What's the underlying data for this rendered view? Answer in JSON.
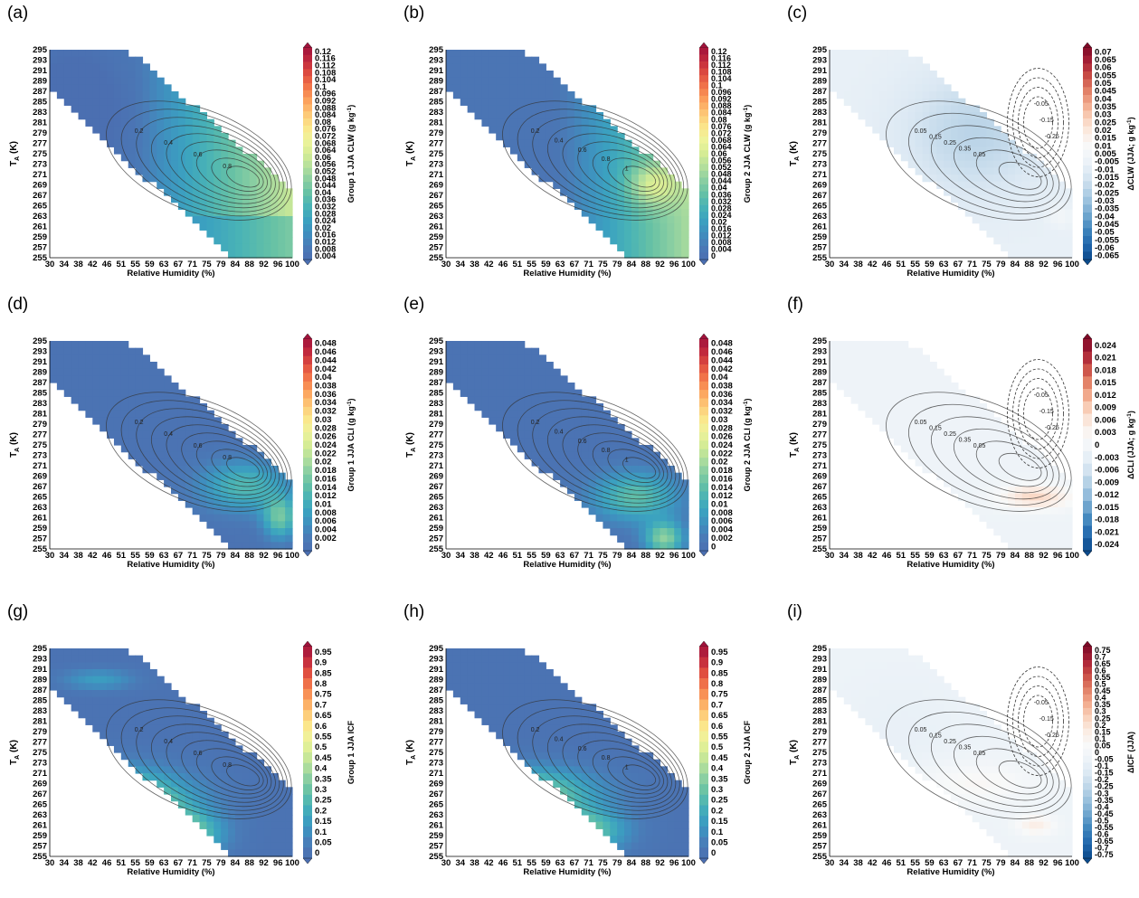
{
  "figure": {
    "xlabel": "Relative Humidity (%)",
    "ylabel_main": "T",
    "ylabel_sub": "A",
    "ylabel_unit": " (K)"
  },
  "colors": {
    "seq": [
      "#4b6fb1",
      "#4a7bb7",
      "#3f8fbf",
      "#3ba2c0",
      "#49b3b6",
      "#66c1a5",
      "#8bcfa2",
      "#b3df9c",
      "#d5ec95",
      "#eef39b",
      "#fbe68b",
      "#fdc877",
      "#fca25d",
      "#f3784b",
      "#e04f40",
      "#c22a3d",
      "#a1133c"
    ],
    "div": [
      "#0c4b8c",
      "#2166ac",
      "#3b82bb",
      "#6aa2cc",
      "#96bedc",
      "#bcd5e8",
      "#dbe8f3",
      "#edf3f8",
      "#f8f9f9",
      "#fbece3",
      "#f9d2bc",
      "#f2aa8d",
      "#e17f66",
      "#c94c45",
      "#a92136",
      "#7f0a27"
    ]
  },
  "chart_data": [
    {
      "id": "a",
      "panel_label": "(a)",
      "type": "heatmap",
      "colormap": "seq",
      "field": "clw1",
      "x_ticks": [
        "30",
        "34",
        "38",
        "42",
        "46",
        "51",
        "55",
        "59",
        "63",
        "67",
        "71",
        "75",
        "79",
        "84",
        "88",
        "92",
        "96",
        "100"
      ],
      "y_ticks": [
        "255",
        "257",
        "259",
        "261",
        "263",
        "265",
        "267",
        "269",
        "271",
        "273",
        "275",
        "277",
        "279",
        "281",
        "283",
        "285",
        "287",
        "289",
        "291",
        "293",
        "295"
      ],
      "cbar_label": [
        "Group 1 JJA CLW (g kg",
        "-1",
        ")"
      ],
      "cbar_ticks": [
        "0.004",
        "0.008",
        "0.012",
        "0.016",
        "0.02",
        "0.024",
        "0.028",
        "0.032",
        "0.036",
        "0.04",
        "0.044",
        "0.048",
        "0.052",
        "0.056",
        "0.06",
        "0.064",
        "0.068",
        "0.072",
        "0.076",
        "0.08",
        "0.084",
        "0.088",
        "0.092",
        "0.096",
        "0.1",
        "0.104",
        "0.108",
        "0.112",
        "0.116",
        "0.12"
      ],
      "contours": "freq",
      "contour_labels": [
        "0.2",
        "0.4",
        "0.6",
        "0.8"
      ]
    },
    {
      "id": "b",
      "panel_label": "(b)",
      "type": "heatmap",
      "colormap": "seq",
      "field": "clw2",
      "x_ticks": [
        "30",
        "34",
        "38",
        "42",
        "46",
        "51",
        "55",
        "59",
        "63",
        "67",
        "71",
        "75",
        "79",
        "84",
        "88",
        "92",
        "96",
        "100"
      ],
      "y_ticks": [
        "255",
        "257",
        "259",
        "261",
        "263",
        "265",
        "267",
        "269",
        "271",
        "273",
        "275",
        "277",
        "279",
        "281",
        "283",
        "285",
        "287",
        "289",
        "291",
        "293",
        "295"
      ],
      "cbar_label": [
        "Group 2 JJA CLW (g kg",
        "-1",
        ")"
      ],
      "cbar_ticks": [
        "0",
        "0.004",
        "0.008",
        "0.012",
        "0.016",
        "0.02",
        "0.024",
        "0.028",
        "0.032",
        "0.036",
        "0.04",
        "0.044",
        "0.048",
        "0.052",
        "0.056",
        "0.06",
        "0.064",
        "0.068",
        "0.072",
        "0.076",
        "0.08",
        "0.084",
        "0.088",
        "0.092",
        "0.096",
        "0.1",
        "0.104",
        "0.108",
        "0.112",
        "0.116",
        "0.12"
      ],
      "contours": "freq",
      "contour_labels": [
        "0.2",
        "0.4",
        "0.6",
        "0.8",
        "1"
      ]
    },
    {
      "id": "c",
      "panel_label": "(c)",
      "type": "heatmap",
      "colormap": "div",
      "field": "dclw",
      "x_ticks": [
        "30",
        "34",
        "38",
        "42",
        "46",
        "51",
        "55",
        "59",
        "63",
        "67",
        "71",
        "75",
        "79",
        "84",
        "88",
        "92",
        "96",
        "100"
      ],
      "y_ticks": [
        "255",
        "257",
        "259",
        "261",
        "263",
        "265",
        "267",
        "269",
        "271",
        "273",
        "275",
        "277",
        "279",
        "281",
        "283",
        "285",
        "287",
        "289",
        "291",
        "293",
        "295"
      ],
      "cbar_label": [
        "ΔCLW (JJA; g kg",
        "-1",
        ")"
      ],
      "cbar_ticks": [
        "-0.065",
        "-0.06",
        "-0.055",
        "-0.05",
        "-0.045",
        "-0.04",
        "-0.035",
        "-0.03",
        "-0.025",
        "-0.02",
        "-0.015",
        "-0.01",
        "-0.005",
        "0.005",
        "0.01",
        "0.015",
        "0.02",
        "0.025",
        "0.03",
        "0.035",
        "0.04",
        "0.045",
        "0.05",
        "0.055",
        "0.06",
        "0.065",
        "0.07"
      ],
      "contours": "diff",
      "contour_labels": [
        "0.05",
        "0.15",
        "0.25",
        "0.35",
        "0.05",
        "-0.05",
        "-0.15",
        "-0.25"
      ]
    },
    {
      "id": "d",
      "panel_label": "(d)",
      "type": "heatmap",
      "colormap": "seq",
      "field": "cli1",
      "x_ticks": [
        "30",
        "34",
        "38",
        "42",
        "46",
        "51",
        "55",
        "59",
        "63",
        "67",
        "71",
        "75",
        "79",
        "84",
        "88",
        "92",
        "96",
        "100"
      ],
      "y_ticks": [
        "255",
        "257",
        "259",
        "261",
        "263",
        "265",
        "267",
        "269",
        "271",
        "273",
        "275",
        "277",
        "279",
        "281",
        "283",
        "285",
        "287",
        "289",
        "291",
        "293",
        "295"
      ],
      "cbar_label": [
        "Group 1 JJA CLI (g kg",
        "-1",
        ")"
      ],
      "cbar_ticks": [
        "0",
        "0.002",
        "0.004",
        "0.006",
        "0.008",
        "0.01",
        "0.012",
        "0.014",
        "0.016",
        "0.018",
        "0.02",
        "0.022",
        "0.024",
        "0.026",
        "0.028",
        "0.03",
        "0.032",
        "0.034",
        "0.036",
        "0.038",
        "0.04",
        "0.042",
        "0.044",
        "0.046",
        "0.048"
      ],
      "contours": "freq",
      "contour_labels": [
        "0.2",
        "0.4",
        "0.6",
        "0.8"
      ]
    },
    {
      "id": "e",
      "panel_label": "(e)",
      "type": "heatmap",
      "colormap": "seq",
      "field": "cli2",
      "x_ticks": [
        "30",
        "34",
        "38",
        "42",
        "46",
        "51",
        "55",
        "59",
        "63",
        "67",
        "71",
        "75",
        "79",
        "84",
        "88",
        "92",
        "96",
        "100"
      ],
      "y_ticks": [
        "255",
        "257",
        "259",
        "261",
        "263",
        "265",
        "267",
        "269",
        "271",
        "273",
        "275",
        "277",
        "279",
        "281",
        "283",
        "285",
        "287",
        "289",
        "291",
        "293",
        "295"
      ],
      "cbar_label": [
        "Group 2 JJA CLI (g kg",
        "-1",
        ")"
      ],
      "cbar_ticks": [
        "0",
        "0.002",
        "0.004",
        "0.006",
        "0.008",
        "0.01",
        "0.012",
        "0.014",
        "0.016",
        "0.018",
        "0.02",
        "0.022",
        "0.024",
        "0.026",
        "0.028",
        "0.03",
        "0.032",
        "0.034",
        "0.036",
        "0.038",
        "0.04",
        "0.042",
        "0.044",
        "0.046",
        "0.048"
      ],
      "contours": "freq",
      "contour_labels": [
        "0.2",
        "0.4",
        "0.6",
        "0.8",
        "1"
      ]
    },
    {
      "id": "f",
      "panel_label": "(f)",
      "type": "heatmap",
      "colormap": "div",
      "field": "dcli",
      "x_ticks": [
        "30",
        "34",
        "38",
        "42",
        "46",
        "51",
        "55",
        "59",
        "63",
        "67",
        "71",
        "75",
        "79",
        "84",
        "88",
        "92",
        "96",
        "100"
      ],
      "y_ticks": [
        "255",
        "257",
        "259",
        "261",
        "263",
        "265",
        "267",
        "269",
        "271",
        "273",
        "275",
        "277",
        "279",
        "281",
        "283",
        "285",
        "287",
        "289",
        "291",
        "293",
        "295"
      ],
      "cbar_label": [
        "ΔCLI (JJA; g kg",
        "-1",
        ")"
      ],
      "cbar_ticks": [
        "-0.024",
        "-0.021",
        "-0.018",
        "-0.015",
        "-0.012",
        "-0.009",
        "-0.006",
        "-0.003",
        "0",
        "0.003",
        "0.006",
        "0.009",
        "0.012",
        "0.015",
        "0.018",
        "0.021",
        "0.024"
      ],
      "contours": "diff",
      "contour_labels": [
        "0.05",
        "0.15",
        "0.25",
        "0.35",
        "0.05",
        "-0.05",
        "-0.15",
        "-0.25"
      ]
    },
    {
      "id": "g",
      "panel_label": "(g)",
      "type": "heatmap",
      "colormap": "seq",
      "field": "icf1",
      "x_ticks": [
        "30",
        "34",
        "38",
        "42",
        "46",
        "51",
        "55",
        "59",
        "63",
        "67",
        "71",
        "75",
        "79",
        "84",
        "88",
        "92",
        "96",
        "100"
      ],
      "y_ticks": [
        "255",
        "257",
        "259",
        "261",
        "263",
        "265",
        "267",
        "269",
        "271",
        "273",
        "275",
        "277",
        "279",
        "281",
        "283",
        "285",
        "287",
        "289",
        "291",
        "293",
        "295"
      ],
      "cbar_label": [
        "Group 1 JJA ICF",
        "",
        ""
      ],
      "cbar_ticks": [
        "0",
        "0.05",
        "0.1",
        "0.15",
        "0.2",
        "0.25",
        "0.3",
        "0.35",
        "0.4",
        "0.45",
        "0.5",
        "0.55",
        "0.6",
        "0.65",
        "0.7",
        "0.75",
        "0.8",
        "0.85",
        "0.9",
        "0.95"
      ],
      "contours": "freq",
      "contour_labels": [
        "0.2",
        "0.4",
        "0.6",
        "0.8"
      ]
    },
    {
      "id": "h",
      "panel_label": "(h)",
      "type": "heatmap",
      "colormap": "seq",
      "field": "icf2",
      "x_ticks": [
        "30",
        "34",
        "38",
        "42",
        "46",
        "51",
        "55",
        "59",
        "63",
        "67",
        "71",
        "75",
        "79",
        "84",
        "88",
        "92",
        "96",
        "100"
      ],
      "y_ticks": [
        "255",
        "257",
        "259",
        "261",
        "263",
        "265",
        "267",
        "269",
        "271",
        "273",
        "275",
        "277",
        "279",
        "281",
        "283",
        "285",
        "287",
        "289",
        "291",
        "293",
        "295"
      ],
      "cbar_label": [
        "Group 2 JJA ICF",
        "",
        ""
      ],
      "cbar_ticks": [
        "0",
        "0.05",
        "0.1",
        "0.15",
        "0.2",
        "0.25",
        "0.3",
        "0.35",
        "0.4",
        "0.45",
        "0.5",
        "0.55",
        "0.6",
        "0.65",
        "0.7",
        "0.75",
        "0.8",
        "0.85",
        "0.9",
        "0.95"
      ],
      "contours": "freq",
      "contour_labels": [
        "0.2",
        "0.4",
        "0.6",
        "0.8",
        "1"
      ]
    },
    {
      "id": "i",
      "panel_label": "(i)",
      "type": "heatmap",
      "colormap": "div",
      "field": "dicf",
      "x_ticks": [
        "30",
        "34",
        "38",
        "42",
        "46",
        "51",
        "55",
        "59",
        "63",
        "67",
        "71",
        "75",
        "79",
        "84",
        "88",
        "92",
        "96",
        "100"
      ],
      "y_ticks": [
        "255",
        "257",
        "259",
        "261",
        "263",
        "265",
        "267",
        "269",
        "271",
        "273",
        "275",
        "277",
        "279",
        "281",
        "283",
        "285",
        "287",
        "289",
        "291",
        "293",
        "295"
      ],
      "cbar_label": [
        "ΔICF (JJA)",
        "",
        ""
      ],
      "cbar_ticks": [
        "-0.75",
        "-0.7",
        "-0.65",
        "-0.6",
        "-0.55",
        "-0.5",
        "-0.45",
        "-0.4",
        "-0.35",
        "-0.3",
        "-0.25",
        "-0.2",
        "-0.15",
        "-0.1",
        "-0.05",
        "0",
        "0.05",
        "0.1",
        "0.15",
        "0.2",
        "0.25",
        "0.3",
        "0.35",
        "0.4",
        "0.45",
        "0.5",
        "0.55",
        "0.6",
        "0.65",
        "0.7",
        "0.75"
      ],
      "contours": "diff",
      "contour_labels": [
        "0.05",
        "0.15",
        "0.25",
        "0.35",
        "0.05",
        "-0.05",
        "-0.15",
        "-0.25"
      ]
    }
  ]
}
